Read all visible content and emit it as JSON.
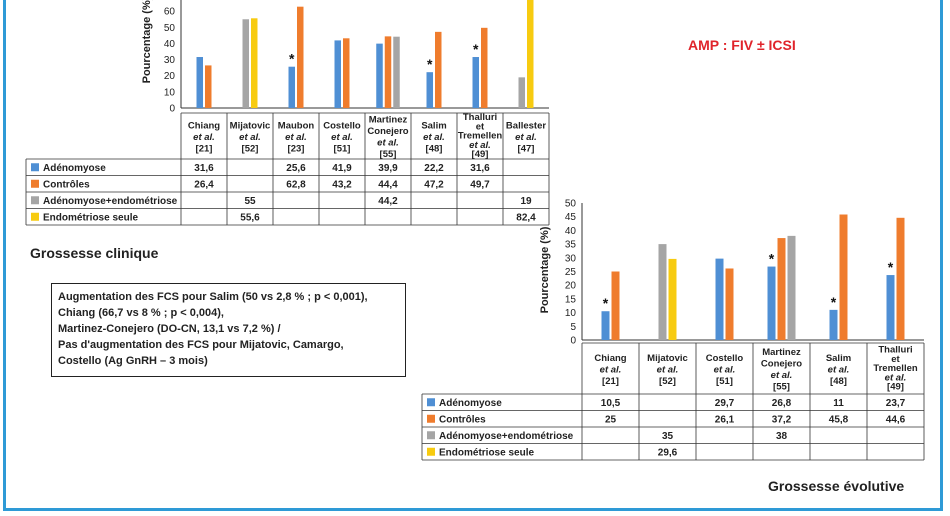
{
  "headings": {
    "clinique": "Grossesse clinique",
    "evolutive": "Grossesse évolutive",
    "amp": "AMP : FIV ± ICSI"
  },
  "note": {
    "lines": [
      "Augmentation des FCS pour Salim (50 vs 2,8 % ; p < 0,001),",
      "Chiang (66,7 vs 8 % ; p < 0,004),",
      "Martinez-Conejero (DO-CN, 13,1 vs 7,2 %) /",
      "Pas d'augmentation des FCS pour Mijatovic, Camargo,",
      "Costello (Ag GnRH – 3 mois)"
    ]
  },
  "colors": {
    "Adénomyose": "#4f8fd4",
    "Contrôles": "#ef7c2d",
    "Adénomyose+endométriose": "#a5a5a5",
    "Endométriose seule": "#f7cb10"
  },
  "chart_data": [
    {
      "type": "bar",
      "ylabel": "Pourcentage (%)",
      "ylim": [
        0,
        75
      ],
      "yticks": [
        "0",
        "10",
        "20",
        "30",
        "40",
        "50",
        "60",
        "70"
      ],
      "categories": [
        {
          "name": "Chiang",
          "etal": "et al.",
          "ref": "[21]"
        },
        {
          "name": "Mijatovic",
          "etal": "et al.",
          "ref": "[52]"
        },
        {
          "name": "Maubon",
          "etal": "et al.",
          "ref": "[23]"
        },
        {
          "name": "Costello",
          "etal": "et al.",
          "ref": "[51]"
        },
        {
          "name": "Martinez",
          "name2": "Conejero",
          "etal": "et al.",
          "ref": "[55]"
        },
        {
          "name": "Salim",
          "etal": "et al.",
          "ref": "[48]"
        },
        {
          "name": "Thalluri",
          "name2": "et",
          "name3": "Tremellen",
          "etal": "et al.",
          "ref": "[49]"
        },
        {
          "name": "Ballester",
          "etal": "et al.",
          "ref": "[47]"
        }
      ],
      "series": [
        {
          "name": "Adénomyose",
          "values": [
            "31,6",
            "",
            "25,6",
            "41,9",
            "39,9",
            "22,2",
            "31,6",
            ""
          ]
        },
        {
          "name": "Contrôles",
          "values": [
            "26,4",
            "",
            "62,8",
            "43,2",
            "44,4",
            "47,2",
            "49,7",
            ""
          ]
        },
        {
          "name": "Adénomyose+endométriose",
          "values": [
            "",
            "55",
            "",
            "",
            "44,2",
            "",
            "",
            "19"
          ]
        },
        {
          "name": "Endométriose seule",
          "values": [
            "",
            "55,6",
            "",
            "",
            "",
            "",
            "",
            "82,4"
          ]
        }
      ],
      "significant": [
        "Maubon",
        "Salim",
        "Thalluri",
        "Ballester"
      ]
    },
    {
      "type": "bar",
      "ylabel": "Pourcentage (%)",
      "ylim": [
        0,
        50
      ],
      "yticks": [
        "0",
        "5",
        "10",
        "15",
        "20",
        "25",
        "30",
        "35",
        "40",
        "45",
        "50"
      ],
      "categories": [
        {
          "name": "Chiang",
          "etal": "et al.",
          "ref": "[21]"
        },
        {
          "name": "Mijatovic",
          "etal": "et al.",
          "ref": "[52]"
        },
        {
          "name": "Costello",
          "etal": "et al.",
          "ref": "[51]"
        },
        {
          "name": "Martinez",
          "name2": "Conejero",
          "etal": "et al.",
          "ref": "[55]"
        },
        {
          "name": "Salim",
          "etal": "et al.",
          "ref": "[48]"
        },
        {
          "name": "Thalluri",
          "name2": "et",
          "name3": "Tremellen",
          "etal": "et al.",
          "ref": "[49]"
        }
      ],
      "series": [
        {
          "name": "Adénomyose",
          "values": [
            "10,5",
            "",
            "29,7",
            "26,8",
            "11",
            "23,7"
          ]
        },
        {
          "name": "Contrôles",
          "values": [
            "25",
            "",
            "26,1",
            "37,2",
            "45,8",
            "44,6"
          ]
        },
        {
          "name": "Adénomyose+endométriose",
          "values": [
            "",
            "35",
            "",
            "38",
            "",
            ""
          ]
        },
        {
          "name": "Endométriose seule",
          "values": [
            "",
            "29,6",
            "",
            "",
            "",
            ""
          ]
        }
      ],
      "significant": [
        "Chiang",
        "Martinez",
        "Salim",
        "Thalluri"
      ]
    }
  ]
}
